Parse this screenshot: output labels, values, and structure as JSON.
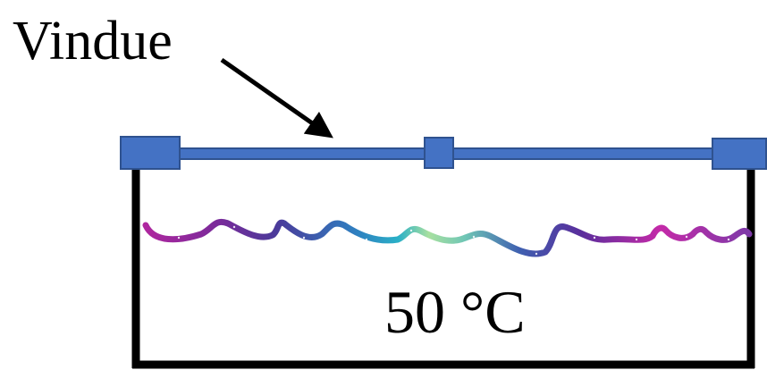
{
  "labels": {
    "vindue": "Vindue",
    "temperature": "50 °C"
  },
  "colors": {
    "frame_blue": "#4472c4",
    "frame_blue_border": "#2f528f",
    "container": "#000000",
    "strand_start": "#b0279f",
    "strand_mid_teal": "#2ab0c7",
    "strand_mid_green": "#a8e0a0",
    "strand_end": "#c42aa8"
  }
}
